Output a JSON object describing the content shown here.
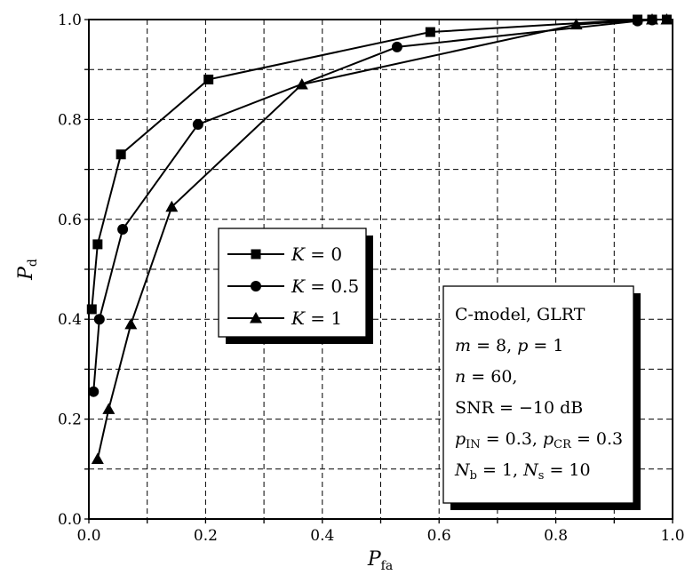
{
  "chart_data": {
    "type": "line",
    "xlabel": {
      "main": "P",
      "sub": "fa"
    },
    "ylabel": {
      "main": "P",
      "sub": "d"
    },
    "xlim": [
      0,
      1
    ],
    "ylim": [
      0,
      1
    ],
    "x_ticks": [
      "0.0",
      "0.2",
      "0.4",
      "0.6",
      "0.8",
      "1.0"
    ],
    "y_ticks": [
      "0.0",
      "0.2",
      "0.4",
      "0.6",
      "0.8",
      "1.0"
    ],
    "grid": true,
    "grid_style": "dashed",
    "legend_position": "center-left",
    "series": [
      {
        "name": "K = 0",
        "marker": "square",
        "x": [
          0.005,
          0.015,
          0.055,
          0.205,
          0.585,
          0.94,
          0.965,
          0.99
        ],
        "y": [
          0.42,
          0.55,
          0.73,
          0.88,
          0.975,
          1.0,
          1.0,
          1.0
        ]
      },
      {
        "name": "K = 0.5",
        "marker": "circle",
        "x": [
          0.008,
          0.018,
          0.058,
          0.187,
          0.528,
          0.94,
          0.965
        ],
        "y": [
          0.255,
          0.4,
          0.58,
          0.79,
          0.945,
          0.997,
          0.999
        ]
      },
      {
        "name": "K = 1",
        "marker": "triangle",
        "x": [
          0.015,
          0.034,
          0.072,
          0.142,
          0.365,
          0.835,
          0.965,
          0.99
        ],
        "y": [
          0.12,
          0.22,
          0.39,
          0.625,
          0.87,
          0.99,
          1.0,
          1.0
        ]
      }
    ],
    "legend_entries": [
      {
        "italic": "K",
        "rest": " = 0"
      },
      {
        "italic": "K",
        "rest": " = 0.5"
      },
      {
        "italic": "K",
        "rest": " = 1"
      }
    ],
    "annotation_lines": [
      [
        {
          "t": "C-model, GLRT"
        }
      ],
      [
        {
          "t": "m",
          "i": true
        },
        {
          "t": " = 8, "
        },
        {
          "t": "p",
          "i": true
        },
        {
          "t": " = 1"
        }
      ],
      [
        {
          "t": "n",
          "i": true
        },
        {
          "t": " = 60,"
        }
      ],
      [
        {
          "t": "SNR = −10 dB"
        }
      ],
      [
        {
          "t": "p",
          "i": true
        },
        {
          "t": "IN",
          "s": true
        },
        {
          "t": " = 0.3, "
        },
        {
          "t": "p",
          "i": true
        },
        {
          "t": "CR",
          "s": true
        },
        {
          "t": " = 0.3"
        }
      ],
      [
        {
          "t": "N",
          "i": true
        },
        {
          "t": "b",
          "s": true
        },
        {
          "t": " = 1, "
        },
        {
          "t": "N",
          "i": true
        },
        {
          "t": "s",
          "s": true
        },
        {
          "t": " = 10"
        }
      ]
    ]
  }
}
